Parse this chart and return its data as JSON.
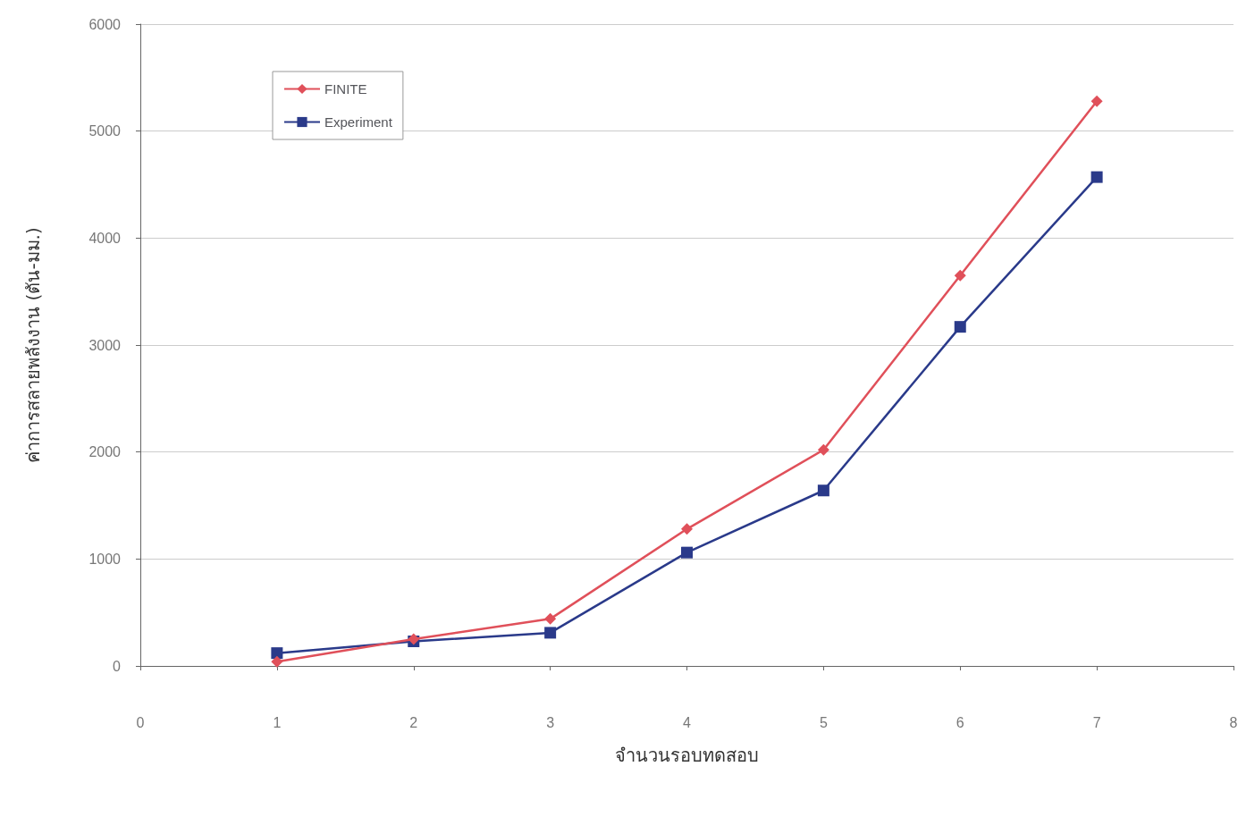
{
  "chart_data": {
    "type": "line",
    "xlabel": "จำนวนรอบทดสอบ",
    "ylabel": "ค่าการสลายพลังงาน (ตัน-มม.)",
    "x": [
      1,
      2,
      3,
      4,
      5,
      6,
      7
    ],
    "series": [
      {
        "name": "FINITE",
        "color": "#e0505a",
        "marker": "diamond",
        "values": [
          40,
          250,
          440,
          1280,
          2020,
          3650,
          5280
        ]
      },
      {
        "name": "Experiment",
        "color": "#2a3a8a",
        "marker": "square",
        "values": [
          120,
          230,
          310,
          1060,
          1640,
          3170,
          4570
        ]
      }
    ],
    "xlim": [
      0,
      8
    ],
    "xticks": [
      0,
      1,
      2,
      3,
      4,
      5,
      6,
      7,
      8
    ],
    "ylim": [
      0,
      6000
    ],
    "yticks": [
      0,
      1000,
      2000,
      3000,
      4000,
      5000,
      6000
    ],
    "grid": "y",
    "legend": "top left"
  }
}
